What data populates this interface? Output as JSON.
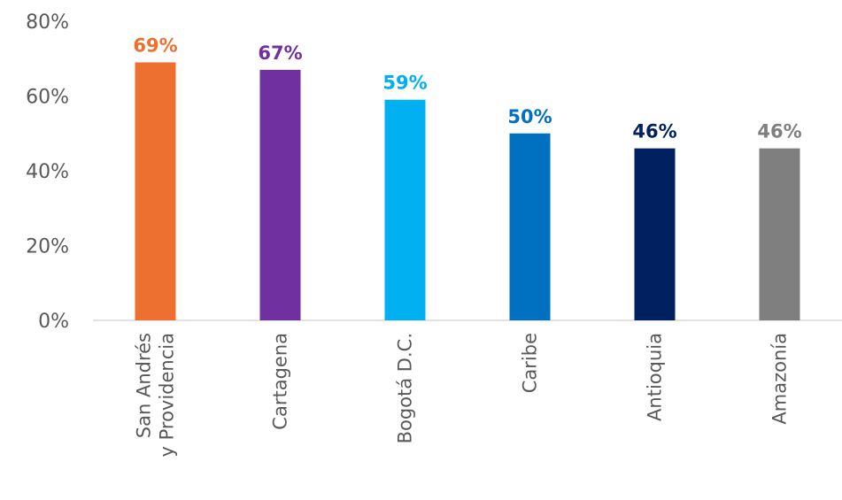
{
  "chart_data": {
    "type": "bar",
    "categories": [
      [
        "San Andrés",
        "y Providencia"
      ],
      [
        "Cartagena"
      ],
      [
        "Bogotá D.C."
      ],
      [
        "Caribe"
      ],
      [
        "Antioquia"
      ],
      [
        "Amazonía"
      ]
    ],
    "values": [
      69,
      67,
      59,
      50,
      46,
      46
    ],
    "data_labels": [
      "69%",
      "67%",
      "59%",
      "50%",
      "46%",
      "46%"
    ],
    "colors": [
      "#ED7031",
      "#7030A0",
      "#00B0F0",
      "#0070C0",
      "#002060",
      "#7F7F7F"
    ],
    "y_ticks": [
      "0%",
      "20%",
      "40%",
      "60%",
      "80%"
    ],
    "y_tick_values": [
      0,
      20,
      40,
      60,
      80
    ],
    "ylim": [
      0,
      80
    ],
    "grid": false,
    "legend": "none"
  }
}
